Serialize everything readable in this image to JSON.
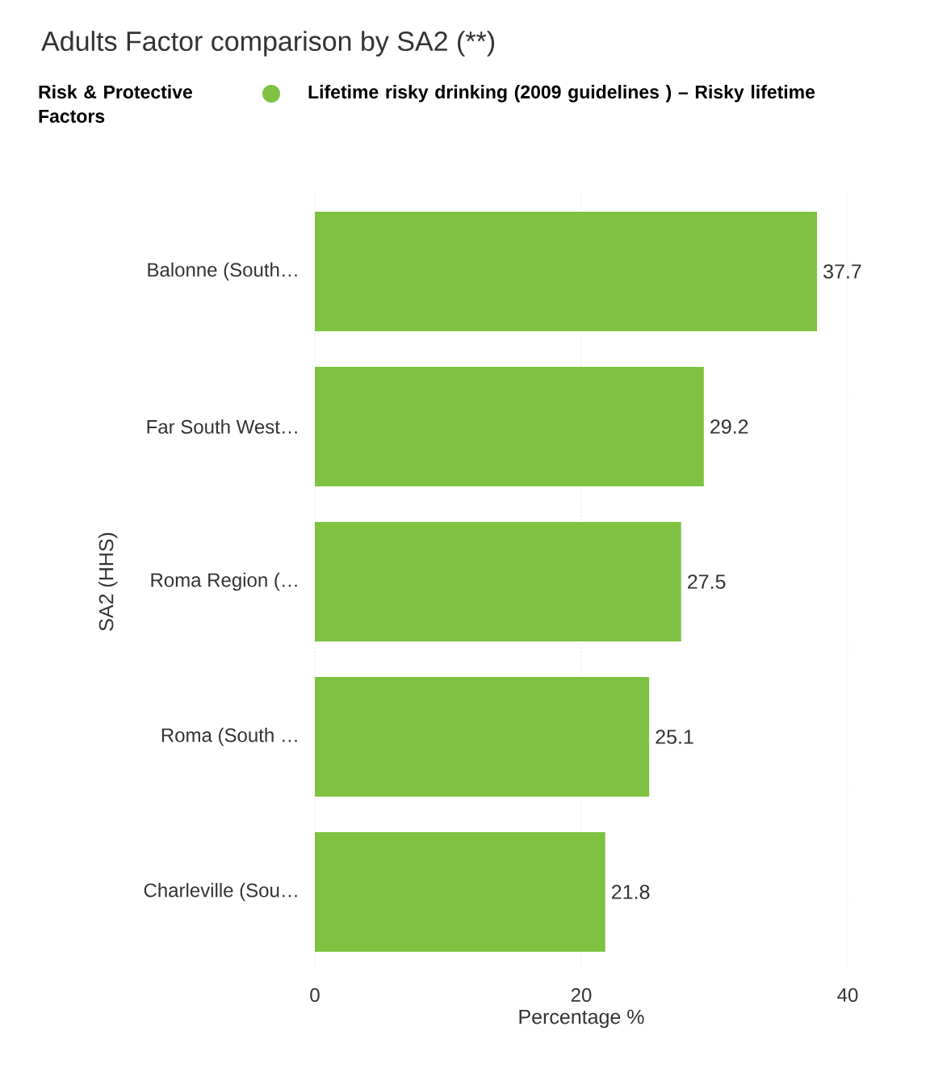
{
  "chart_data": {
    "type": "bar",
    "orientation": "horizontal",
    "title": "Adults Factor comparison by SA2 (**)",
    "legend_title": "Risk & Protective Factors",
    "legend": "top left",
    "xlabel": "Percentage %",
    "ylabel": "SA2 (HHS)",
    "categories": [
      "Balonne (South…",
      "Far South West…",
      "Roma Region (…",
      "Roma (South …",
      "Charleville (Sou…"
    ],
    "series": [
      {
        "name": "Lifetime risky drinking (2009 guidelines ) – Risky lifetime",
        "color": "#7fc241",
        "values": [
          37.7,
          29.2,
          27.5,
          25.1,
          21.8
        ]
      }
    ],
    "xlim": [
      0,
      40
    ],
    "xticks": [
      0,
      20,
      40
    ],
    "grid": "x",
    "data_labels": true
  }
}
